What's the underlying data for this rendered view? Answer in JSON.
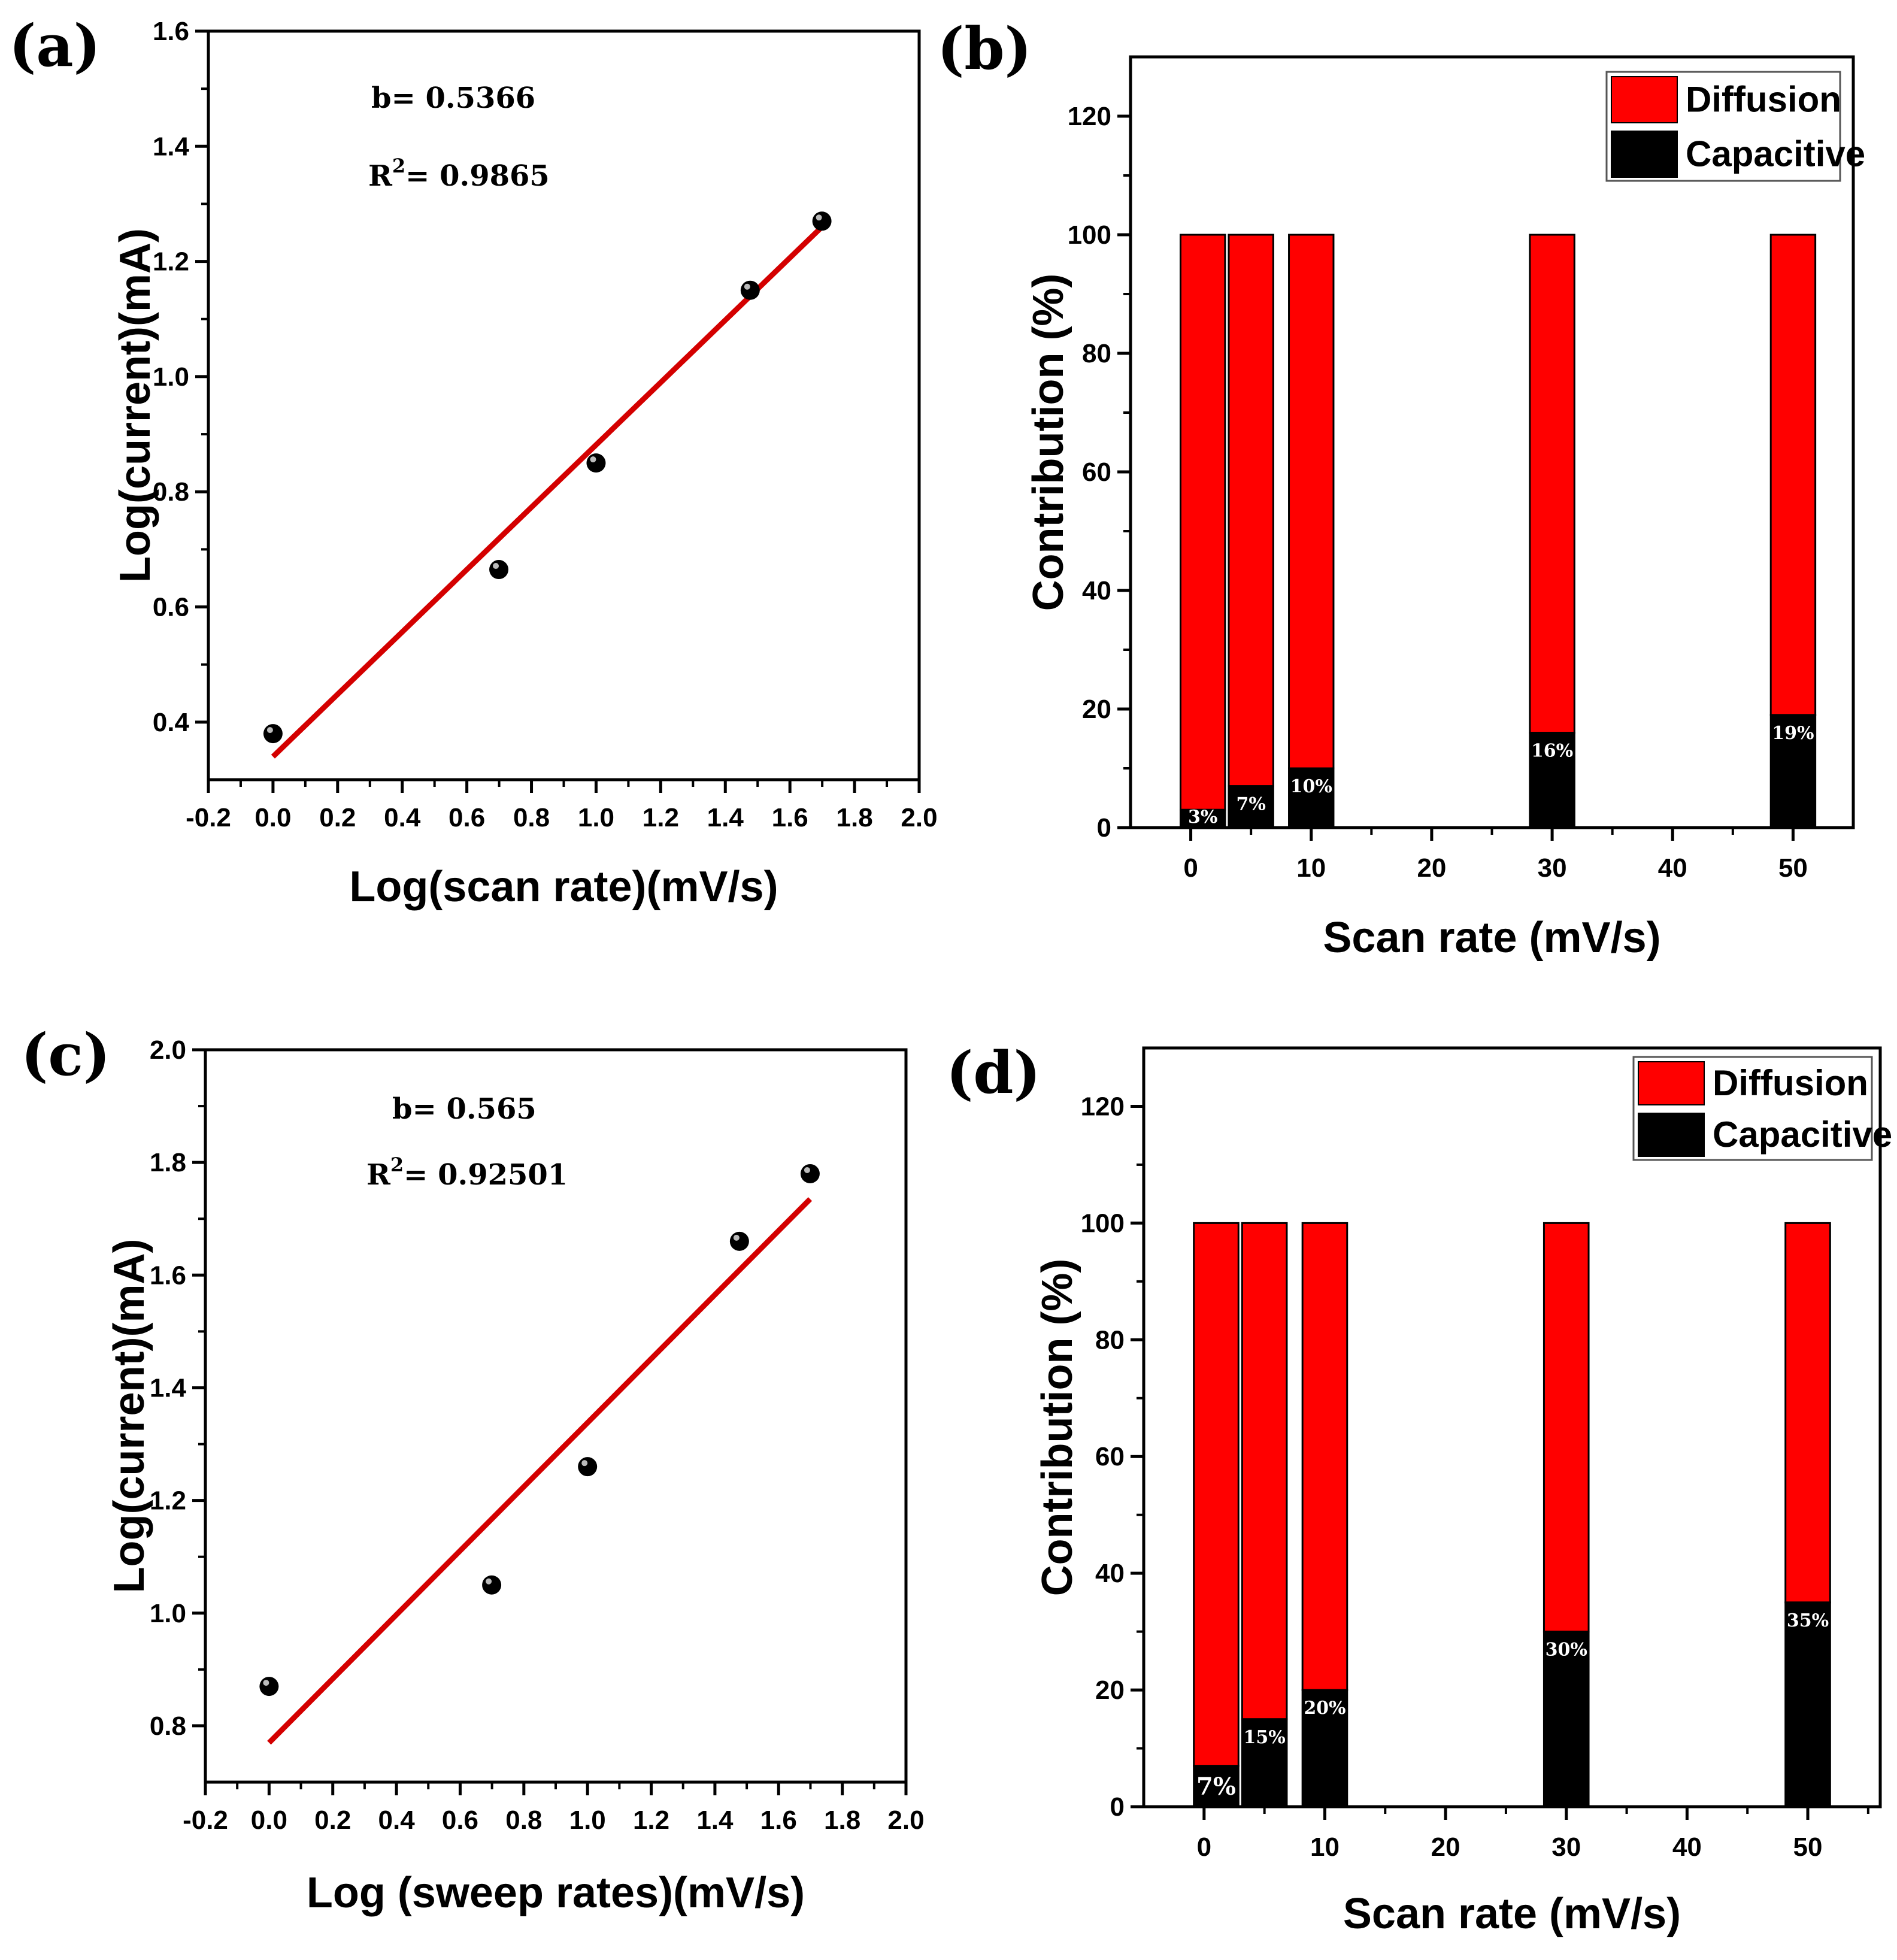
{
  "chart_data": [
    {
      "id": "a",
      "type": "scatter",
      "panel_label": "(a)",
      "xlabel": "Log(scan rate)(mV/s)",
      "ylabel": "Log(current)(mA)",
      "xlim": [
        -0.2,
        2.0
      ],
      "ylim": [
        0.3,
        1.6
      ],
      "x_ticks": [
        -0.2,
        0.0,
        0.2,
        0.4,
        0.6,
        0.8,
        1.0,
        1.2,
        1.4,
        1.6,
        1.8,
        2.0
      ],
      "x_tick_labels": [
        "-0.2",
        "0.0",
        "0.2",
        "0.4",
        "0.6",
        "0.8",
        "1.0",
        "1.2",
        "1.4",
        "1.6",
        "1.8",
        "2.0"
      ],
      "y_ticks": [
        0.4,
        0.6,
        0.8,
        1.0,
        1.2,
        1.4,
        1.6
      ],
      "y_tick_labels": [
        "0.4",
        "0.6",
        "0.8",
        "1.0",
        "1.2",
        "1.4",
        "1.6"
      ],
      "points": {
        "x": [
          0.0,
          0.699,
          1.0,
          1.477,
          1.699
        ],
        "y": [
          0.38,
          0.665,
          0.85,
          1.15,
          1.27
        ]
      },
      "fit_line": {
        "x": [
          0.0,
          1.699
        ],
        "y": [
          0.34,
          1.26
        ],
        "color": "#d40000"
      },
      "annotations": {
        "b_text": "b= 0.5366",
        "r2_prefix": "R",
        "r2_sup": "2",
        "r2_value": "= 0.9865"
      }
    },
    {
      "id": "b",
      "type": "bar",
      "panel_label": "(b)",
      "xlabel": "Scan rate (mV/s)",
      "ylabel": "Contribution (%)",
      "xlim": [
        -5,
        55
      ],
      "ylim": [
        0,
        130
      ],
      "x_ticks": [
        0,
        10,
        20,
        30,
        40,
        50
      ],
      "x_tick_labels": [
        "0",
        "10",
        "20",
        "30",
        "40",
        "50"
      ],
      "y_ticks": [
        0,
        20,
        40,
        60,
        80,
        100,
        120
      ],
      "y_tick_labels": [
        "0",
        "20",
        "40",
        "60",
        "80",
        "100",
        "120"
      ],
      "x": [
        1,
        5,
        10,
        30,
        50
      ],
      "bar_width": 3.7,
      "series": [
        {
          "name": "Capacitive",
          "color": "#000000",
          "values": [
            3,
            7,
            10,
            16,
            19
          ]
        },
        {
          "name": "Diffusion",
          "color": "#ff0000",
          "values": [
            97,
            93,
            90,
            84,
            81
          ]
        }
      ],
      "bar_labels": [
        "3%",
        "7%",
        "10%",
        "16%",
        "19%"
      ],
      "legend": [
        "Diffusion",
        "Capacitive"
      ]
    },
    {
      "id": "c",
      "type": "scatter",
      "panel_label": "(c)",
      "xlabel": "Log (sweep rates)(mV/s)",
      "ylabel": "Log(current)(mA)",
      "xlim": [
        -0.2,
        2.0
      ],
      "ylim": [
        0.7,
        2.0
      ],
      "x_ticks": [
        -0.2,
        0.0,
        0.2,
        0.4,
        0.6,
        0.8,
        1.0,
        1.2,
        1.4,
        1.6,
        1.8,
        2.0
      ],
      "x_tick_labels": [
        "-0.2",
        "0.0",
        "0.2",
        "0.4",
        "0.6",
        "0.8",
        "1.0",
        "1.2",
        "1.4",
        "1.6",
        "1.8",
        "2.0"
      ],
      "y_ticks": [
        0.8,
        1.0,
        1.2,
        1.4,
        1.6,
        1.8,
        2.0
      ],
      "y_tick_labels": [
        "0.8",
        "1.0",
        "1.2",
        "1.4",
        "1.6",
        "1.8",
        "2.0"
      ],
      "points": {
        "x": [
          0.0,
          0.699,
          1.0,
          1.477,
          1.699
        ],
        "y": [
          0.87,
          1.05,
          1.26,
          1.66,
          1.78
        ]
      },
      "fit_line": {
        "x": [
          0.0,
          1.699
        ],
        "y": [
          0.77,
          1.735
        ],
        "color": "#d40000"
      },
      "annotations": {
        "b_text": "b= 0.565",
        "r2_prefix": "R",
        "r2_sup": "2",
        "r2_value": "= 0.92501"
      }
    },
    {
      "id": "d",
      "type": "bar",
      "panel_label": "(d)",
      "xlabel": "Scan rate (mV/s)",
      "ylabel": "Contribution (%)",
      "xlim": [
        -5,
        56
      ],
      "ylim": [
        0,
        130
      ],
      "x_ticks": [
        0,
        10,
        20,
        30,
        40,
        50
      ],
      "x_tick_labels": [
        "0",
        "10",
        "20",
        "30",
        "40",
        "50"
      ],
      "y_ticks": [
        0,
        20,
        40,
        60,
        80,
        100,
        120
      ],
      "y_tick_labels": [
        "0",
        "20",
        "40",
        "60",
        "80",
        "100",
        "120"
      ],
      "x": [
        1,
        5,
        10,
        30,
        50
      ],
      "bar_width": 3.7,
      "series": [
        {
          "name": "Capacitive",
          "color": "#000000",
          "values": [
            7,
            15,
            20,
            30,
            35
          ]
        },
        {
          "name": "Diffusion",
          "color": "#ff0000",
          "values": [
            93,
            85,
            80,
            70,
            65
          ]
        }
      ],
      "bar_labels": [
        "7%",
        "15%",
        "20%",
        "30%",
        "35%"
      ],
      "legend": [
        "Diffusion",
        "Capacitive"
      ]
    }
  ]
}
